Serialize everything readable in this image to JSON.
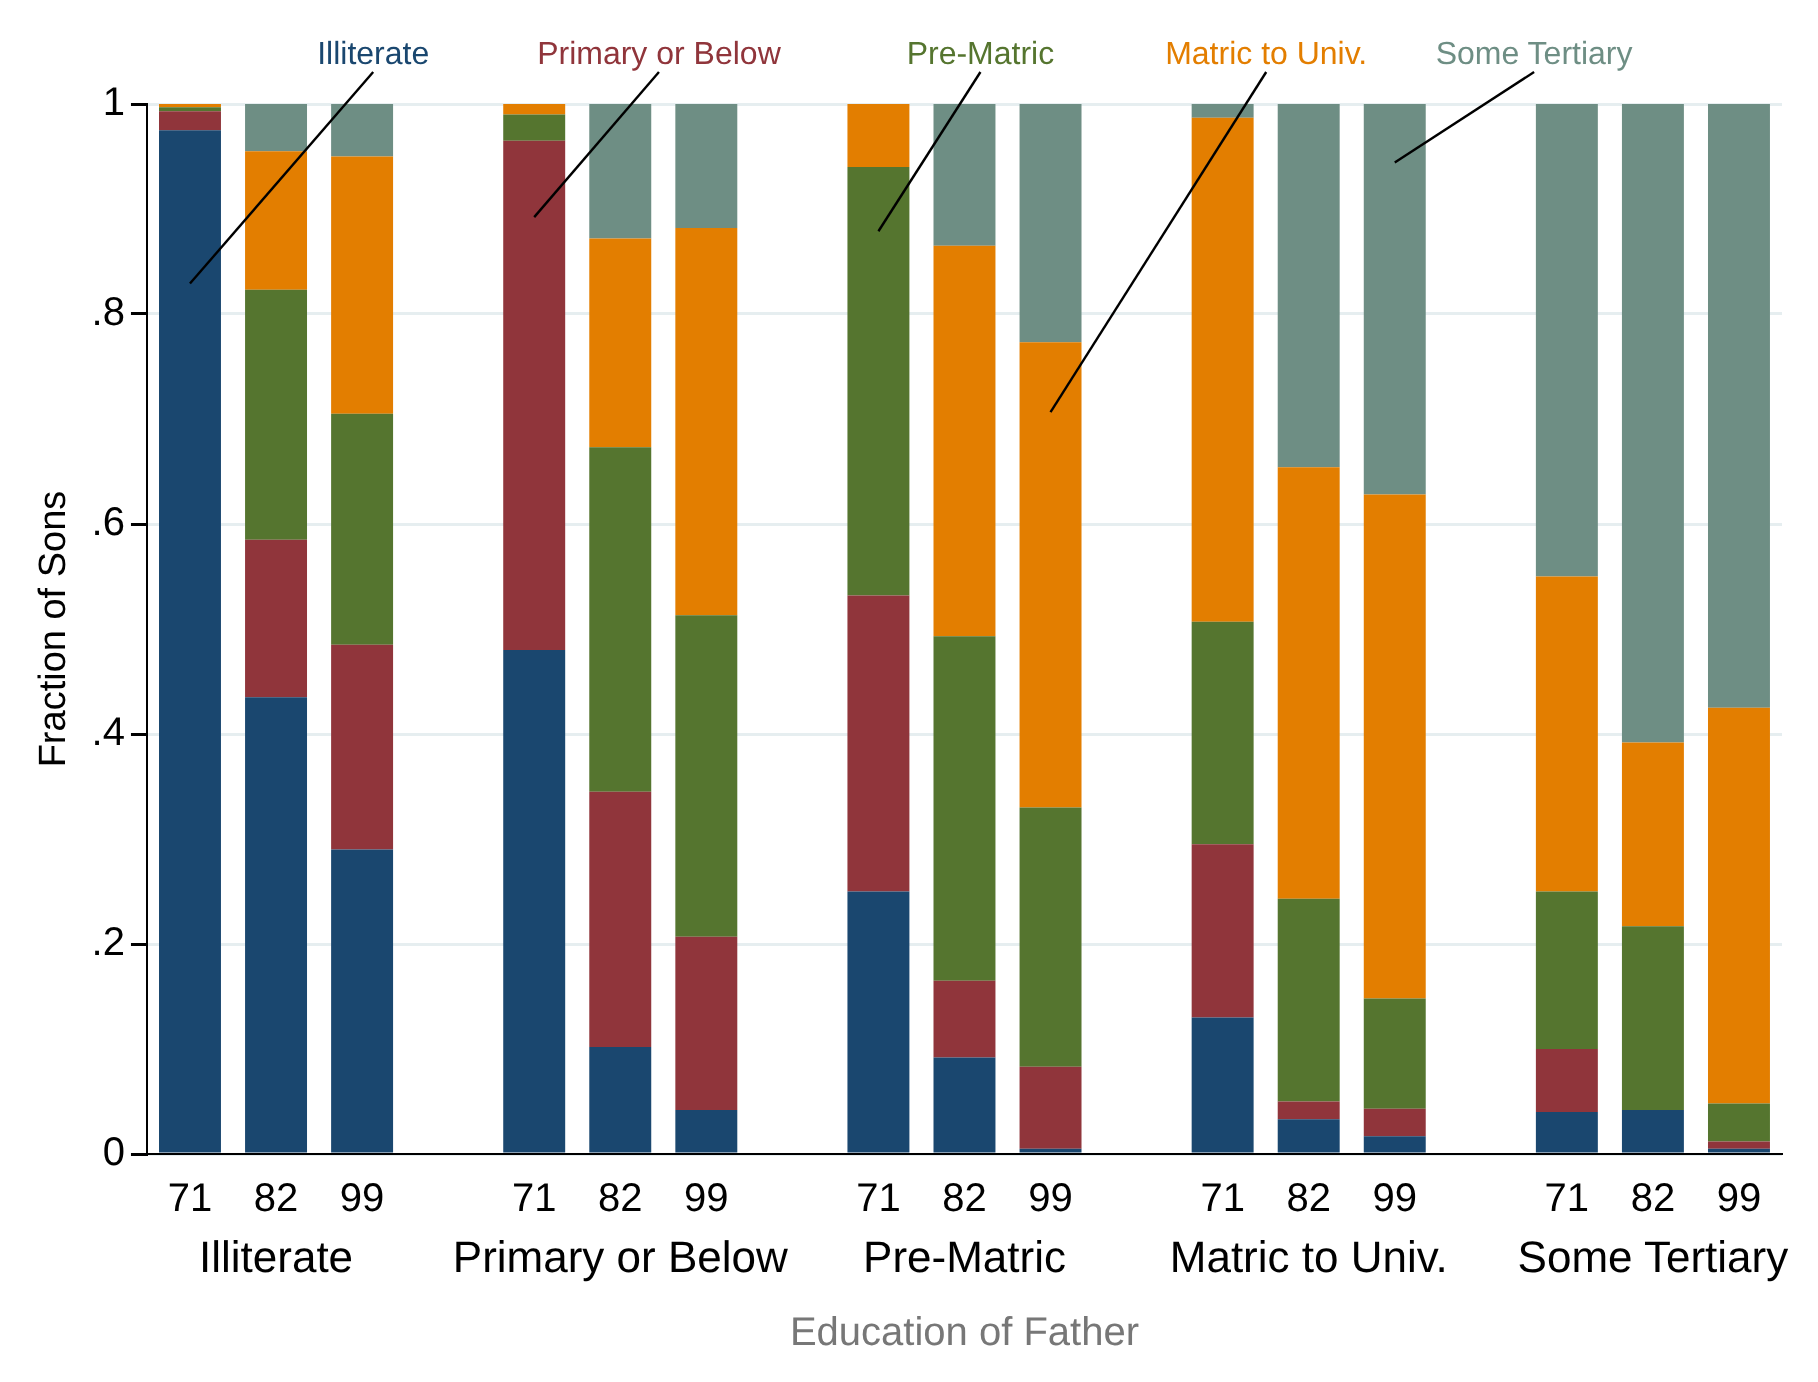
{
  "chart_data": {
    "type": "bar",
    "stacked": true,
    "ylabel": "Fraction of Sons",
    "xlabel": "Education of Father",
    "categories": [
      "71",
      "82",
      "99",
      null,
      "71",
      "82",
      "99",
      null,
      "71",
      "82",
      "99",
      null,
      "71",
      "82",
      "99",
      null,
      "71",
      "82",
      "99"
    ],
    "annotations": [
      "Illiterate",
      "Primary or Below",
      "Pre-Matric",
      "Matric to Univ.",
      "Some Tertiary"
    ],
    "series": [
      {
        "name": "Illiterate",
        "color": "#1a476f",
        "values": [
          0.975,
          0.435,
          0.29,
          null,
          0.48,
          0.102,
          0.042,
          null,
          0.25,
          0.092,
          0.005,
          null,
          0.13,
          0.033,
          0.017,
          null,
          0.04,
          0.042,
          0.005
        ]
      },
      {
        "name": "Primary or Below",
        "color": "#90353b",
        "values": [
          0.018,
          0.15,
          0.195,
          null,
          0.485,
          0.243,
          0.165,
          null,
          0.282,
          0.073,
          0.078,
          null,
          0.165,
          0.017,
          0.026,
          null,
          0.06,
          0,
          0.007
        ]
      },
      {
        "name": "Pre-Matric",
        "color": "#55752f",
        "values": [
          0.004,
          0.238,
          0.22,
          null,
          0.025,
          0.328,
          0.306,
          null,
          0.408,
          0.328,
          0.247,
          null,
          0.212,
          0.193,
          0.105,
          null,
          0.15,
          0.175,
          0.036
        ]
      },
      {
        "name": "Matric to Univ.",
        "color": "#e37e00",
        "values": [
          0.003,
          0.132,
          0.245,
          null,
          0.01,
          0.199,
          0.369,
          null,
          0.06,
          0.372,
          0.443,
          null,
          0.48,
          0.411,
          0.48,
          null,
          0.3,
          0.175,
          0.377
        ]
      },
      {
        "name": "Some Tertiary",
        "color": "#6e8e84",
        "values": [
          0,
          0.045,
          0.05,
          null,
          0,
          0.128,
          0.118,
          null,
          0,
          0.135,
          0.227,
          null,
          0.013,
          0.346,
          0.372,
          null,
          0.45,
          0.608,
          0.575
        ]
      }
    ],
    "ylim": [
      0,
      1
    ],
    "yticks": [
      {
        "value": 0,
        "label": "0"
      },
      {
        "value": 0.2,
        "label": ".2"
      },
      {
        "value": 0.4,
        "label": ".4"
      },
      {
        "value": 0.6,
        "label": ".6"
      },
      {
        "value": 0.8,
        "label": ".8"
      },
      1
    ],
    "grid": "y"
  }
}
